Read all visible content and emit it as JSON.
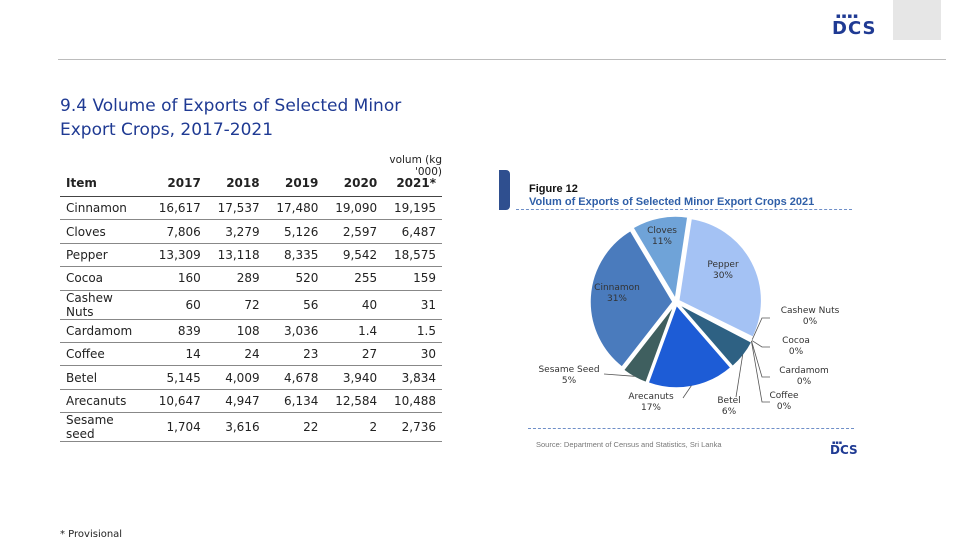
{
  "header": {
    "logo_text": "DCS",
    "logo_dots": "▪▪▪▪"
  },
  "page": {
    "title_line1": "9.4  Volume of Exports of Selected Minor",
    "title_line2": "Export Crops, 2017-2021",
    "unit": "volum (kg '000)",
    "footnote": "* Provisional"
  },
  "table": {
    "headers": [
      "Item",
      "2017",
      "2018",
      "2019",
      "2020",
      "2021*"
    ],
    "rows": [
      [
        "Cinnamon",
        "16,617",
        "17,537",
        "17,480",
        "19,090",
        "19,195"
      ],
      [
        "Cloves",
        "7,806",
        "3,279",
        "5,126",
        "2,597",
        "6,487"
      ],
      [
        "Pepper",
        "13,309",
        "13,118",
        "8,335",
        "9,542",
        "18,575"
      ],
      [
        "Cocoa",
        "160",
        "289",
        "520",
        "255",
        "159"
      ],
      [
        "Cashew Nuts",
        "60",
        "72",
        "56",
        "40",
        "31"
      ],
      [
        "Cardamom",
        "839",
        "108",
        "3,036",
        "1.4",
        "1.5"
      ],
      [
        "Coffee",
        "14",
        "24",
        "23",
        "27",
        "30"
      ],
      [
        "Betel",
        "5,145",
        "4,009",
        "4,678",
        "3,940",
        "3,834"
      ],
      [
        "Arecanuts",
        "10,647",
        "4,947",
        "6,134",
        "12,584",
        "10,488"
      ],
      [
        "Sesame seed",
        "1,704",
        "3,616",
        "22",
        "2",
        "2,736"
      ]
    ]
  },
  "figure": {
    "label": "Figure 12",
    "title": "Volum of Exports of Selected Minor Export Crops 2021",
    "source": "Source:   Department of Census and Statistics, Sri Lanka",
    "logo_text": "DCS",
    "logo_dots": "▪▪▪"
  },
  "chart_data": {
    "type": "pie",
    "title": "Volum of Exports of Selected Minor Export Crops 2021",
    "slices": [
      {
        "name": "Pepper",
        "label": "30%",
        "value": 30,
        "color": "#a4c2f4"
      },
      {
        "name": "Cashew Nuts",
        "label": "0%",
        "value": 0.05,
        "color": "#7fa6e0"
      },
      {
        "name": "Cocoa",
        "label": "0%",
        "value": 0.25,
        "color": "#3d6eb5"
      },
      {
        "name": "Cardamom",
        "label": "0%",
        "value": 0.01,
        "color": "#24497f"
      },
      {
        "name": "Coffee",
        "label": "0%",
        "value": 0.05,
        "color": "#1b3560"
      },
      {
        "name": "Betel",
        "label": "6%",
        "value": 6,
        "color": "#2e6183"
      },
      {
        "name": "Arecanuts",
        "label": "17%",
        "value": 17,
        "color": "#1d5cd6"
      },
      {
        "name": "Sesame Seed",
        "label": "5%",
        "value": 5,
        "color": "#3f5f5f"
      },
      {
        "name": "Cinnamon",
        "label": "31%",
        "value": 31,
        "color": "#4a7bbd"
      },
      {
        "name": "Cloves",
        "label": "11%",
        "value": 11,
        "color": "#6fa3d8"
      }
    ]
  }
}
